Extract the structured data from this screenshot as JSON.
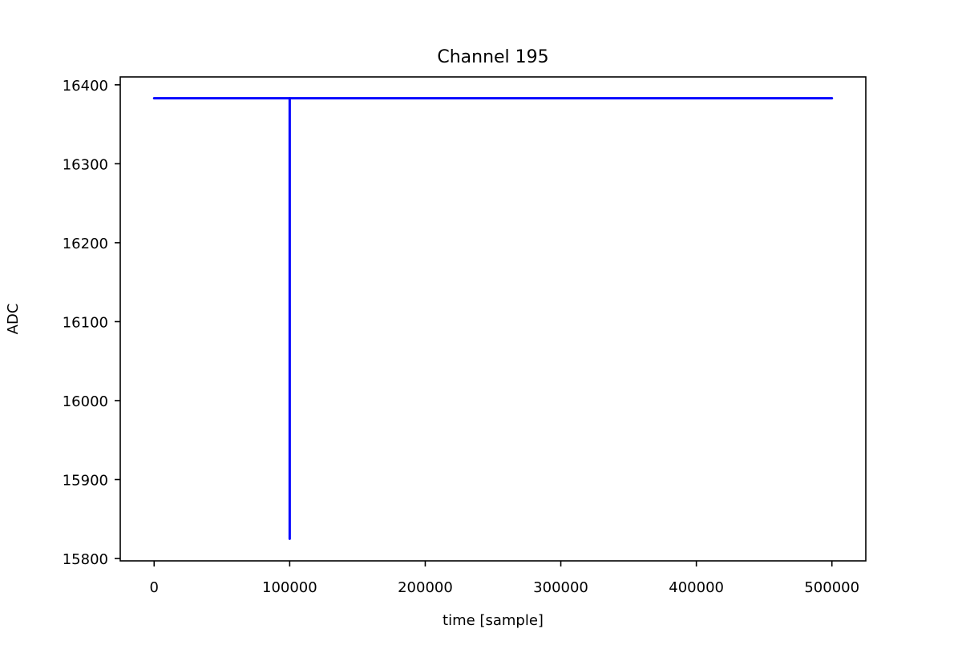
{
  "chart_data": {
    "type": "line",
    "title": "Channel 195",
    "xlabel": "time [sample]",
    "ylabel": "ADC",
    "xlim": [
      -25000,
      525000
    ],
    "ylim": [
      15797,
      16410
    ],
    "x_ticks": [
      0,
      100000,
      200000,
      300000,
      400000,
      500000
    ],
    "x_tick_labels": [
      "0",
      "100000",
      "200000",
      "300000",
      "400000",
      "500000"
    ],
    "y_ticks": [
      15800,
      15900,
      16000,
      16100,
      16200,
      16300,
      16400
    ],
    "y_tick_labels": [
      "15800",
      "15900",
      "16000",
      "16100",
      "16200",
      "16300",
      "16400"
    ],
    "grid": false,
    "legend": "none",
    "series": [
      {
        "color": "#0000ff",
        "x": [
          0,
          99999,
          100000,
          100000,
          100001,
          500000
        ],
        "y": [
          16383,
          16383,
          16383,
          15825,
          16383,
          16383
        ]
      }
    ]
  }
}
